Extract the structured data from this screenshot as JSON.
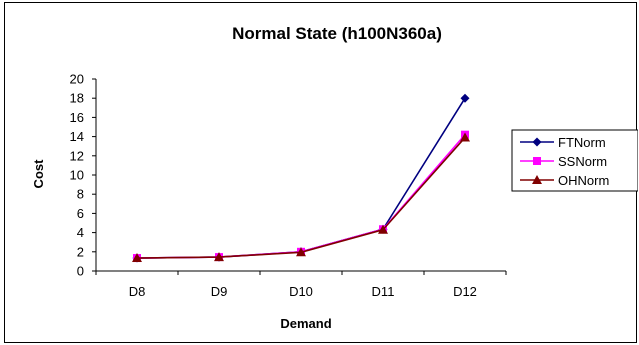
{
  "chart_data": {
    "type": "line",
    "title": "Normal State (h100N360a)",
    "xlabel": "Demand",
    "ylabel": "Cost",
    "categories": [
      "D8",
      "D9",
      "D10",
      "D11",
      "D12"
    ],
    "ylim": [
      0,
      20
    ],
    "yticks": [
      0,
      2,
      4,
      6,
      8,
      10,
      12,
      14,
      16,
      18,
      20
    ],
    "grid": false,
    "legend_position": "right",
    "series": [
      {
        "name": "FTNorm",
        "color": "#000080",
        "marker": "diamond",
        "values": [
          1.35,
          1.45,
          2.0,
          4.35,
          18.0
        ]
      },
      {
        "name": "SSNorm",
        "color": "#FF00FF",
        "marker": "square",
        "values": [
          1.35,
          1.45,
          2.0,
          4.35,
          14.2
        ]
      },
      {
        "name": "OHNorm",
        "color": "#800000",
        "marker": "triangle",
        "values": [
          1.35,
          1.45,
          1.95,
          4.3,
          13.9
        ]
      }
    ]
  }
}
